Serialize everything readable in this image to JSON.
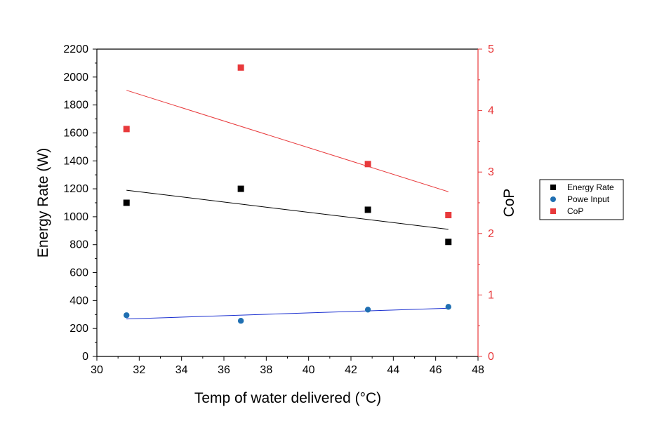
{
  "chart_data": {
    "type": "scatter",
    "title": "",
    "xlabel": "Temp of water delivered (°C)",
    "ylabel": "Energy Rate (W)",
    "y2label": "CoP",
    "xlim": [
      30,
      48
    ],
    "ylim": [
      0,
      2200
    ],
    "y2lim": [
      0,
      5
    ],
    "xticks": [
      30,
      32,
      34,
      36,
      38,
      40,
      42,
      44,
      46,
      48
    ],
    "yticks": [
      0,
      200,
      400,
      600,
      800,
      1000,
      1200,
      1400,
      1600,
      1800,
      2000,
      2200
    ],
    "y2ticks": [
      0,
      1,
      2,
      3,
      4,
      5
    ],
    "legend_position": "right",
    "series": [
      {
        "name": "Energy Rate",
        "axis": "left",
        "marker": "square",
        "color": "#000000",
        "x": [
          31.4,
          36.8,
          42.8,
          46.6
        ],
        "values": [
          1100,
          1200,
          1050,
          820
        ],
        "trend": {
          "x": [
            31.4,
            46.6
          ],
          "y": [
            1190,
            910
          ]
        }
      },
      {
        "name": "Powe Input",
        "axis": "left",
        "marker": "circle",
        "color": "#1f6fb2",
        "trend_color": "#1a2fd0",
        "x": [
          31.4,
          36.8,
          42.8,
          46.6
        ],
        "values": [
          295,
          255,
          335,
          355
        ],
        "trend": {
          "x": [
            31.4,
            46.6
          ],
          "y": [
            268,
            345
          ]
        }
      },
      {
        "name": "CoP",
        "axis": "right",
        "marker": "square",
        "color": "#e8393b",
        "x": [
          31.4,
          36.8,
          42.8,
          46.6
        ],
        "values": [
          3.7,
          4.7,
          3.13,
          2.3
        ],
        "trend": {
          "x": [
            31.4,
            46.6
          ],
          "y": [
            4.33,
            2.68
          ]
        }
      }
    ]
  }
}
